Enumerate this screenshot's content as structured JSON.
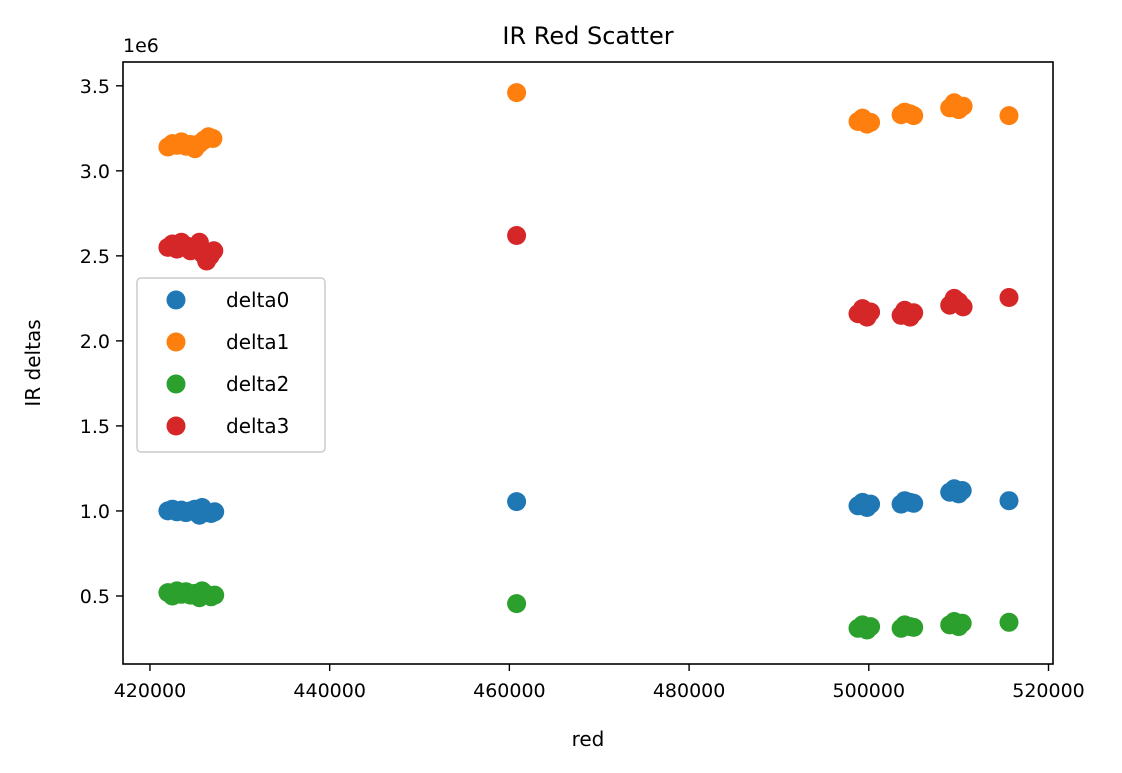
{
  "chart_data": {
    "type": "scatter",
    "title": "IR Red Scatter",
    "xlabel": "red",
    "ylabel": "IR deltas",
    "y_offset_label": "1e6",
    "xlim": [
      417000,
      520500
    ],
    "ylim": [
      100000,
      3640000
    ],
    "xticks": [
      420000,
      440000,
      460000,
      480000,
      500000,
      520000
    ],
    "xtick_labels": [
      "420000",
      "440000",
      "460000",
      "480000",
      "500000",
      "520000"
    ],
    "yticks": [
      500000,
      1000000,
      1500000,
      2000000,
      2500000,
      3000000,
      3500000
    ],
    "ytick_labels": [
      "0.5",
      "1.0",
      "1.5",
      "2.0",
      "2.5",
      "3.0",
      "3.5"
    ],
    "grid": false,
    "legend_position": "center-left",
    "series": [
      {
        "name": "delta0",
        "color": "#1f77b4",
        "points": [
          [
            422000,
            1000000
          ],
          [
            422500,
            1010000
          ],
          [
            423000,
            995000
          ],
          [
            423500,
            1005000
          ],
          [
            424000,
            990000
          ],
          [
            424500,
            1000000
          ],
          [
            425000,
            1010000
          ],
          [
            425500,
            975000
          ],
          [
            425800,
            1020000
          ],
          [
            426300,
            990000
          ],
          [
            426800,
            985000
          ],
          [
            427200,
            995000
          ],
          [
            460800,
            1055000
          ],
          [
            498800,
            1030000
          ],
          [
            499300,
            1050000
          ],
          [
            499800,
            1020000
          ],
          [
            500200,
            1040000
          ],
          [
            503600,
            1040000
          ],
          [
            504000,
            1060000
          ],
          [
            504600,
            1050000
          ],
          [
            505000,
            1045000
          ],
          [
            509000,
            1110000
          ],
          [
            509500,
            1130000
          ],
          [
            510000,
            1100000
          ],
          [
            510400,
            1120000
          ],
          [
            515600,
            1060000
          ]
        ]
      },
      {
        "name": "delta1",
        "color": "#ff7f0e",
        "points": [
          [
            422000,
            3140000
          ],
          [
            422500,
            3160000
          ],
          [
            423000,
            3150000
          ],
          [
            423500,
            3170000
          ],
          [
            424000,
            3145000
          ],
          [
            424500,
            3155000
          ],
          [
            425000,
            3130000
          ],
          [
            425500,
            3160000
          ],
          [
            426000,
            3180000
          ],
          [
            426500,
            3200000
          ],
          [
            427000,
            3190000
          ],
          [
            460800,
            3460000
          ],
          [
            498800,
            3290000
          ],
          [
            499300,
            3310000
          ],
          [
            499800,
            3275000
          ],
          [
            500200,
            3285000
          ],
          [
            503600,
            3330000
          ],
          [
            504000,
            3345000
          ],
          [
            504600,
            3335000
          ],
          [
            505000,
            3325000
          ],
          [
            509000,
            3370000
          ],
          [
            509500,
            3400000
          ],
          [
            510000,
            3360000
          ],
          [
            510500,
            3380000
          ],
          [
            515600,
            3325000
          ]
        ]
      },
      {
        "name": "delta2",
        "color": "#2ca02c",
        "points": [
          [
            422000,
            520000
          ],
          [
            422500,
            500000
          ],
          [
            423000,
            530000
          ],
          [
            423500,
            510000
          ],
          [
            424000,
            525000
          ],
          [
            424500,
            505000
          ],
          [
            425000,
            515000
          ],
          [
            425500,
            490000
          ],
          [
            425800,
            530000
          ],
          [
            426300,
            510000
          ],
          [
            426800,
            495000
          ],
          [
            427200,
            505000
          ],
          [
            460800,
            455000
          ],
          [
            498800,
            310000
          ],
          [
            499300,
            330000
          ],
          [
            499800,
            300000
          ],
          [
            500200,
            320000
          ],
          [
            503600,
            310000
          ],
          [
            504000,
            330000
          ],
          [
            504600,
            320000
          ],
          [
            505000,
            315000
          ],
          [
            509000,
            330000
          ],
          [
            509500,
            350000
          ],
          [
            510000,
            320000
          ],
          [
            510400,
            340000
          ],
          [
            515600,
            345000
          ]
        ]
      },
      {
        "name": "delta3",
        "color": "#d62728",
        "points": [
          [
            422000,
            2550000
          ],
          [
            422500,
            2570000
          ],
          [
            423000,
            2540000
          ],
          [
            423500,
            2580000
          ],
          [
            424000,
            2560000
          ],
          [
            424500,
            2530000
          ],
          [
            425000,
            2550000
          ],
          [
            425500,
            2580000
          ],
          [
            425900,
            2510000
          ],
          [
            426300,
            2470000
          ],
          [
            426700,
            2500000
          ],
          [
            427100,
            2530000
          ],
          [
            460800,
            2620000
          ],
          [
            498800,
            2160000
          ],
          [
            499300,
            2190000
          ],
          [
            499800,
            2140000
          ],
          [
            500200,
            2170000
          ],
          [
            503600,
            2150000
          ],
          [
            504000,
            2180000
          ],
          [
            504600,
            2140000
          ],
          [
            505000,
            2165000
          ],
          [
            509000,
            2210000
          ],
          [
            509500,
            2250000
          ],
          [
            510000,
            2230000
          ],
          [
            510500,
            2200000
          ],
          [
            515600,
            2255000
          ]
        ]
      }
    ]
  }
}
